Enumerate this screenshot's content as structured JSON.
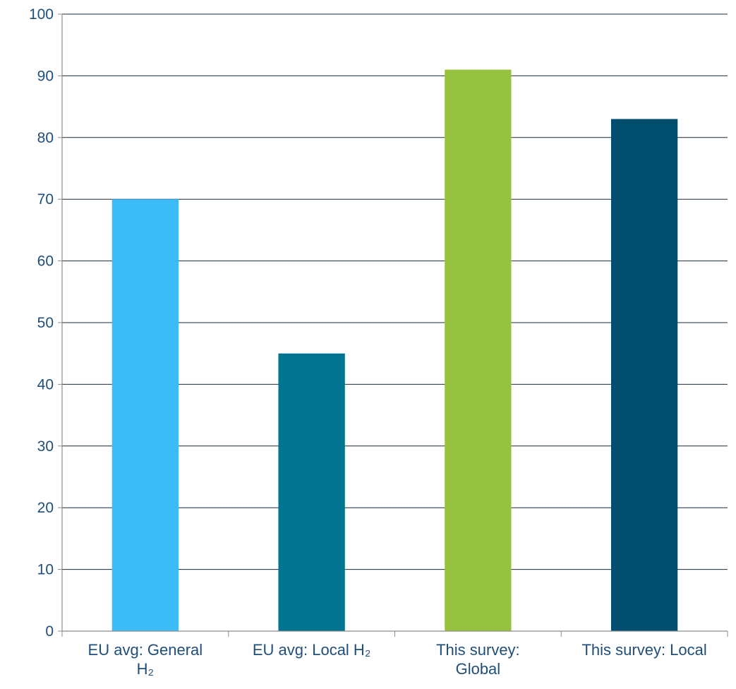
{
  "chart_data": {
    "type": "bar",
    "title": "",
    "xlabel": "",
    "ylabel": "",
    "categories": [
      {
        "lines": [
          "EU avg: General",
          "H₂"
        ]
      },
      {
        "lines": [
          "EU avg: Local H₂"
        ]
      },
      {
        "lines": [
          "This survey:",
          "Global"
        ]
      },
      {
        "lines": [
          "This survey: Local"
        ]
      }
    ],
    "values": [
      70,
      45,
      91,
      83
    ],
    "colors": [
      "#3bbcf8",
      "#007490",
      "#96c23f",
      "#004d6e"
    ],
    "ylim": [
      0,
      100
    ],
    "yticks": [
      "0",
      "10",
      "20",
      "30",
      "40",
      "50",
      "60",
      "70",
      "80",
      "90",
      "100"
    ],
    "grid": true,
    "legend": "none"
  }
}
